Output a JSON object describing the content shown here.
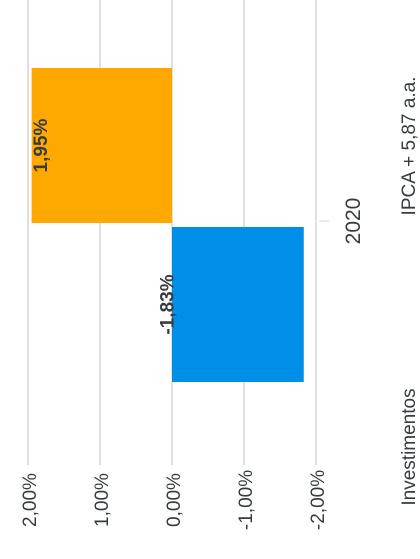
{
  "chart_data": {
    "type": "bar",
    "orientation": "rotated",
    "categories": [
      "2020"
    ],
    "series": [
      {
        "name": "IPCA + 5,87 a.a.",
        "values": [
          1.95
        ],
        "color": "#FFA800"
      },
      {
        "name": "Investimentos",
        "values": [
          -1.83
        ],
        "color": "#008FE8"
      }
    ],
    "value_ticks": [
      "2,00%",
      "1,00%",
      "0,00%",
      "-1,00%",
      "-2,00%"
    ],
    "tick_values": [
      2,
      1,
      0,
      -1,
      -2
    ],
    "data_labels": [
      "1,95%",
      "-1,83%"
    ],
    "ylim": [
      -2,
      2
    ],
    "grid": true,
    "legend_position": "right"
  }
}
